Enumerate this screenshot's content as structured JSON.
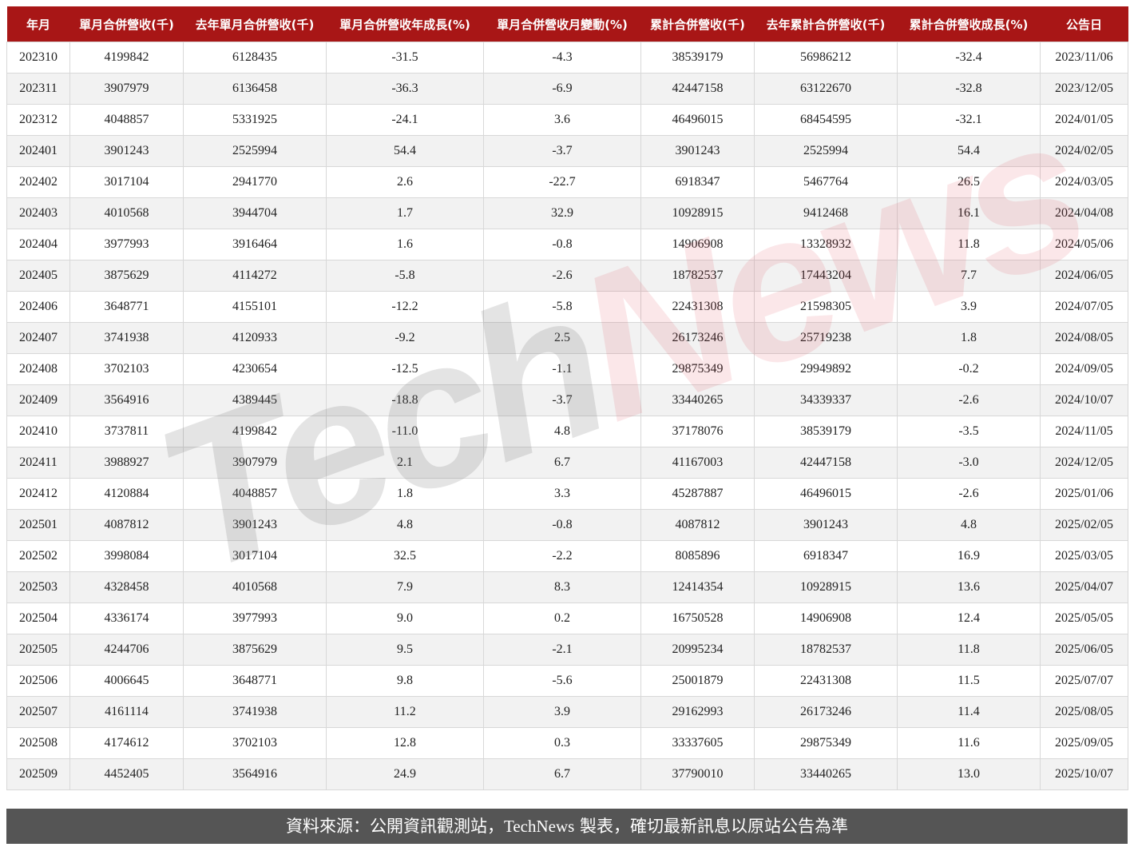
{
  "chart_data": {
    "type": "table",
    "columns": [
      "年月",
      "單月合併營收(千)",
      "去年單月合併營收(千)",
      "單月合併營收年成長(%)",
      "單月合併營收月變動(%)",
      "累計合併營收(千)",
      "去年累計合併營收(千)",
      "累計合併營收成長(%)",
      "公告日"
    ],
    "rows": [
      [
        "202310",
        "4199842",
        "6128435",
        "-31.5",
        "-4.3",
        "38539179",
        "56986212",
        "-32.4",
        "2023/11/06"
      ],
      [
        "202311",
        "3907979",
        "6136458",
        "-36.3",
        "-6.9",
        "42447158",
        "63122670",
        "-32.8",
        "2023/12/05"
      ],
      [
        "202312",
        "4048857",
        "5331925",
        "-24.1",
        "3.6",
        "46496015",
        "68454595",
        "-32.1",
        "2024/01/05"
      ],
      [
        "202401",
        "3901243",
        "2525994",
        "54.4",
        "-3.7",
        "3901243",
        "2525994",
        "54.4",
        "2024/02/05"
      ],
      [
        "202402",
        "3017104",
        "2941770",
        "2.6",
        "-22.7",
        "6918347",
        "5467764",
        "26.5",
        "2024/03/05"
      ],
      [
        "202403",
        "4010568",
        "3944704",
        "1.7",
        "32.9",
        "10928915",
        "9412468",
        "16.1",
        "2024/04/08"
      ],
      [
        "202404",
        "3977993",
        "3916464",
        "1.6",
        "-0.8",
        "14906908",
        "13328932",
        "11.8",
        "2024/05/06"
      ],
      [
        "202405",
        "3875629",
        "4114272",
        "-5.8",
        "-2.6",
        "18782537",
        "17443204",
        "7.7",
        "2024/06/05"
      ],
      [
        "202406",
        "3648771",
        "4155101",
        "-12.2",
        "-5.8",
        "22431308",
        "21598305",
        "3.9",
        "2024/07/05"
      ],
      [
        "202407",
        "3741938",
        "4120933",
        "-9.2",
        "2.5",
        "26173246",
        "25719238",
        "1.8",
        "2024/08/05"
      ],
      [
        "202408",
        "3702103",
        "4230654",
        "-12.5",
        "-1.1",
        "29875349",
        "29949892",
        "-0.2",
        "2024/09/05"
      ],
      [
        "202409",
        "3564916",
        "4389445",
        "-18.8",
        "-3.7",
        "33440265",
        "34339337",
        "-2.6",
        "2024/10/07"
      ],
      [
        "202410",
        "3737811",
        "4199842",
        "-11.0",
        "4.8",
        "37178076",
        "38539179",
        "-3.5",
        "2024/11/05"
      ],
      [
        "202411",
        "3988927",
        "3907979",
        "2.1",
        "6.7",
        "41167003",
        "42447158",
        "-3.0",
        "2024/12/05"
      ],
      [
        "202412",
        "4120884",
        "4048857",
        "1.8",
        "3.3",
        "45287887",
        "46496015",
        "-2.6",
        "2025/01/06"
      ],
      [
        "202501",
        "4087812",
        "3901243",
        "4.8",
        "-0.8",
        "4087812",
        "3901243",
        "4.8",
        "2025/02/05"
      ],
      [
        "202502",
        "3998084",
        "3017104",
        "32.5",
        "-2.2",
        "8085896",
        "6918347",
        "16.9",
        "2025/03/05"
      ],
      [
        "202503",
        "4328458",
        "4010568",
        "7.9",
        "8.3",
        "12414354",
        "10928915",
        "13.6",
        "2025/04/07"
      ],
      [
        "202504",
        "4336174",
        "3977993",
        "9.0",
        "0.2",
        "16750528",
        "14906908",
        "12.4",
        "2025/05/05"
      ],
      [
        "202505",
        "4244706",
        "3875629",
        "9.5",
        "-2.1",
        "20995234",
        "18782537",
        "11.8",
        "2025/06/05"
      ],
      [
        "202506",
        "4006645",
        "3648771",
        "9.8",
        "-5.6",
        "25001879",
        "22431308",
        "11.5",
        "2025/07/07"
      ],
      [
        "202507",
        "4161114",
        "3741938",
        "11.2",
        "3.9",
        "29162993",
        "26173246",
        "11.4",
        "2025/08/05"
      ],
      [
        "202508",
        "4174612",
        "3702103",
        "12.8",
        "0.3",
        "33337605",
        "29875349",
        "11.6",
        "2025/09/05"
      ],
      [
        "202509",
        "4452405",
        "3564916",
        "24.9",
        "6.7",
        "37790010",
        "33440265",
        "13.0",
        "2025/10/07"
      ]
    ]
  },
  "colors": {
    "header_bg": "#a81616",
    "footer_bg": "#555555",
    "alt_row": "#f2f2f2"
  },
  "watermark": "TechNews",
  "footer": {
    "part1": "資料來源：公開資訊觀測站，",
    "part2": "TechNews",
    "part3": " 製表，確切最新訊息以原站公告為準"
  }
}
